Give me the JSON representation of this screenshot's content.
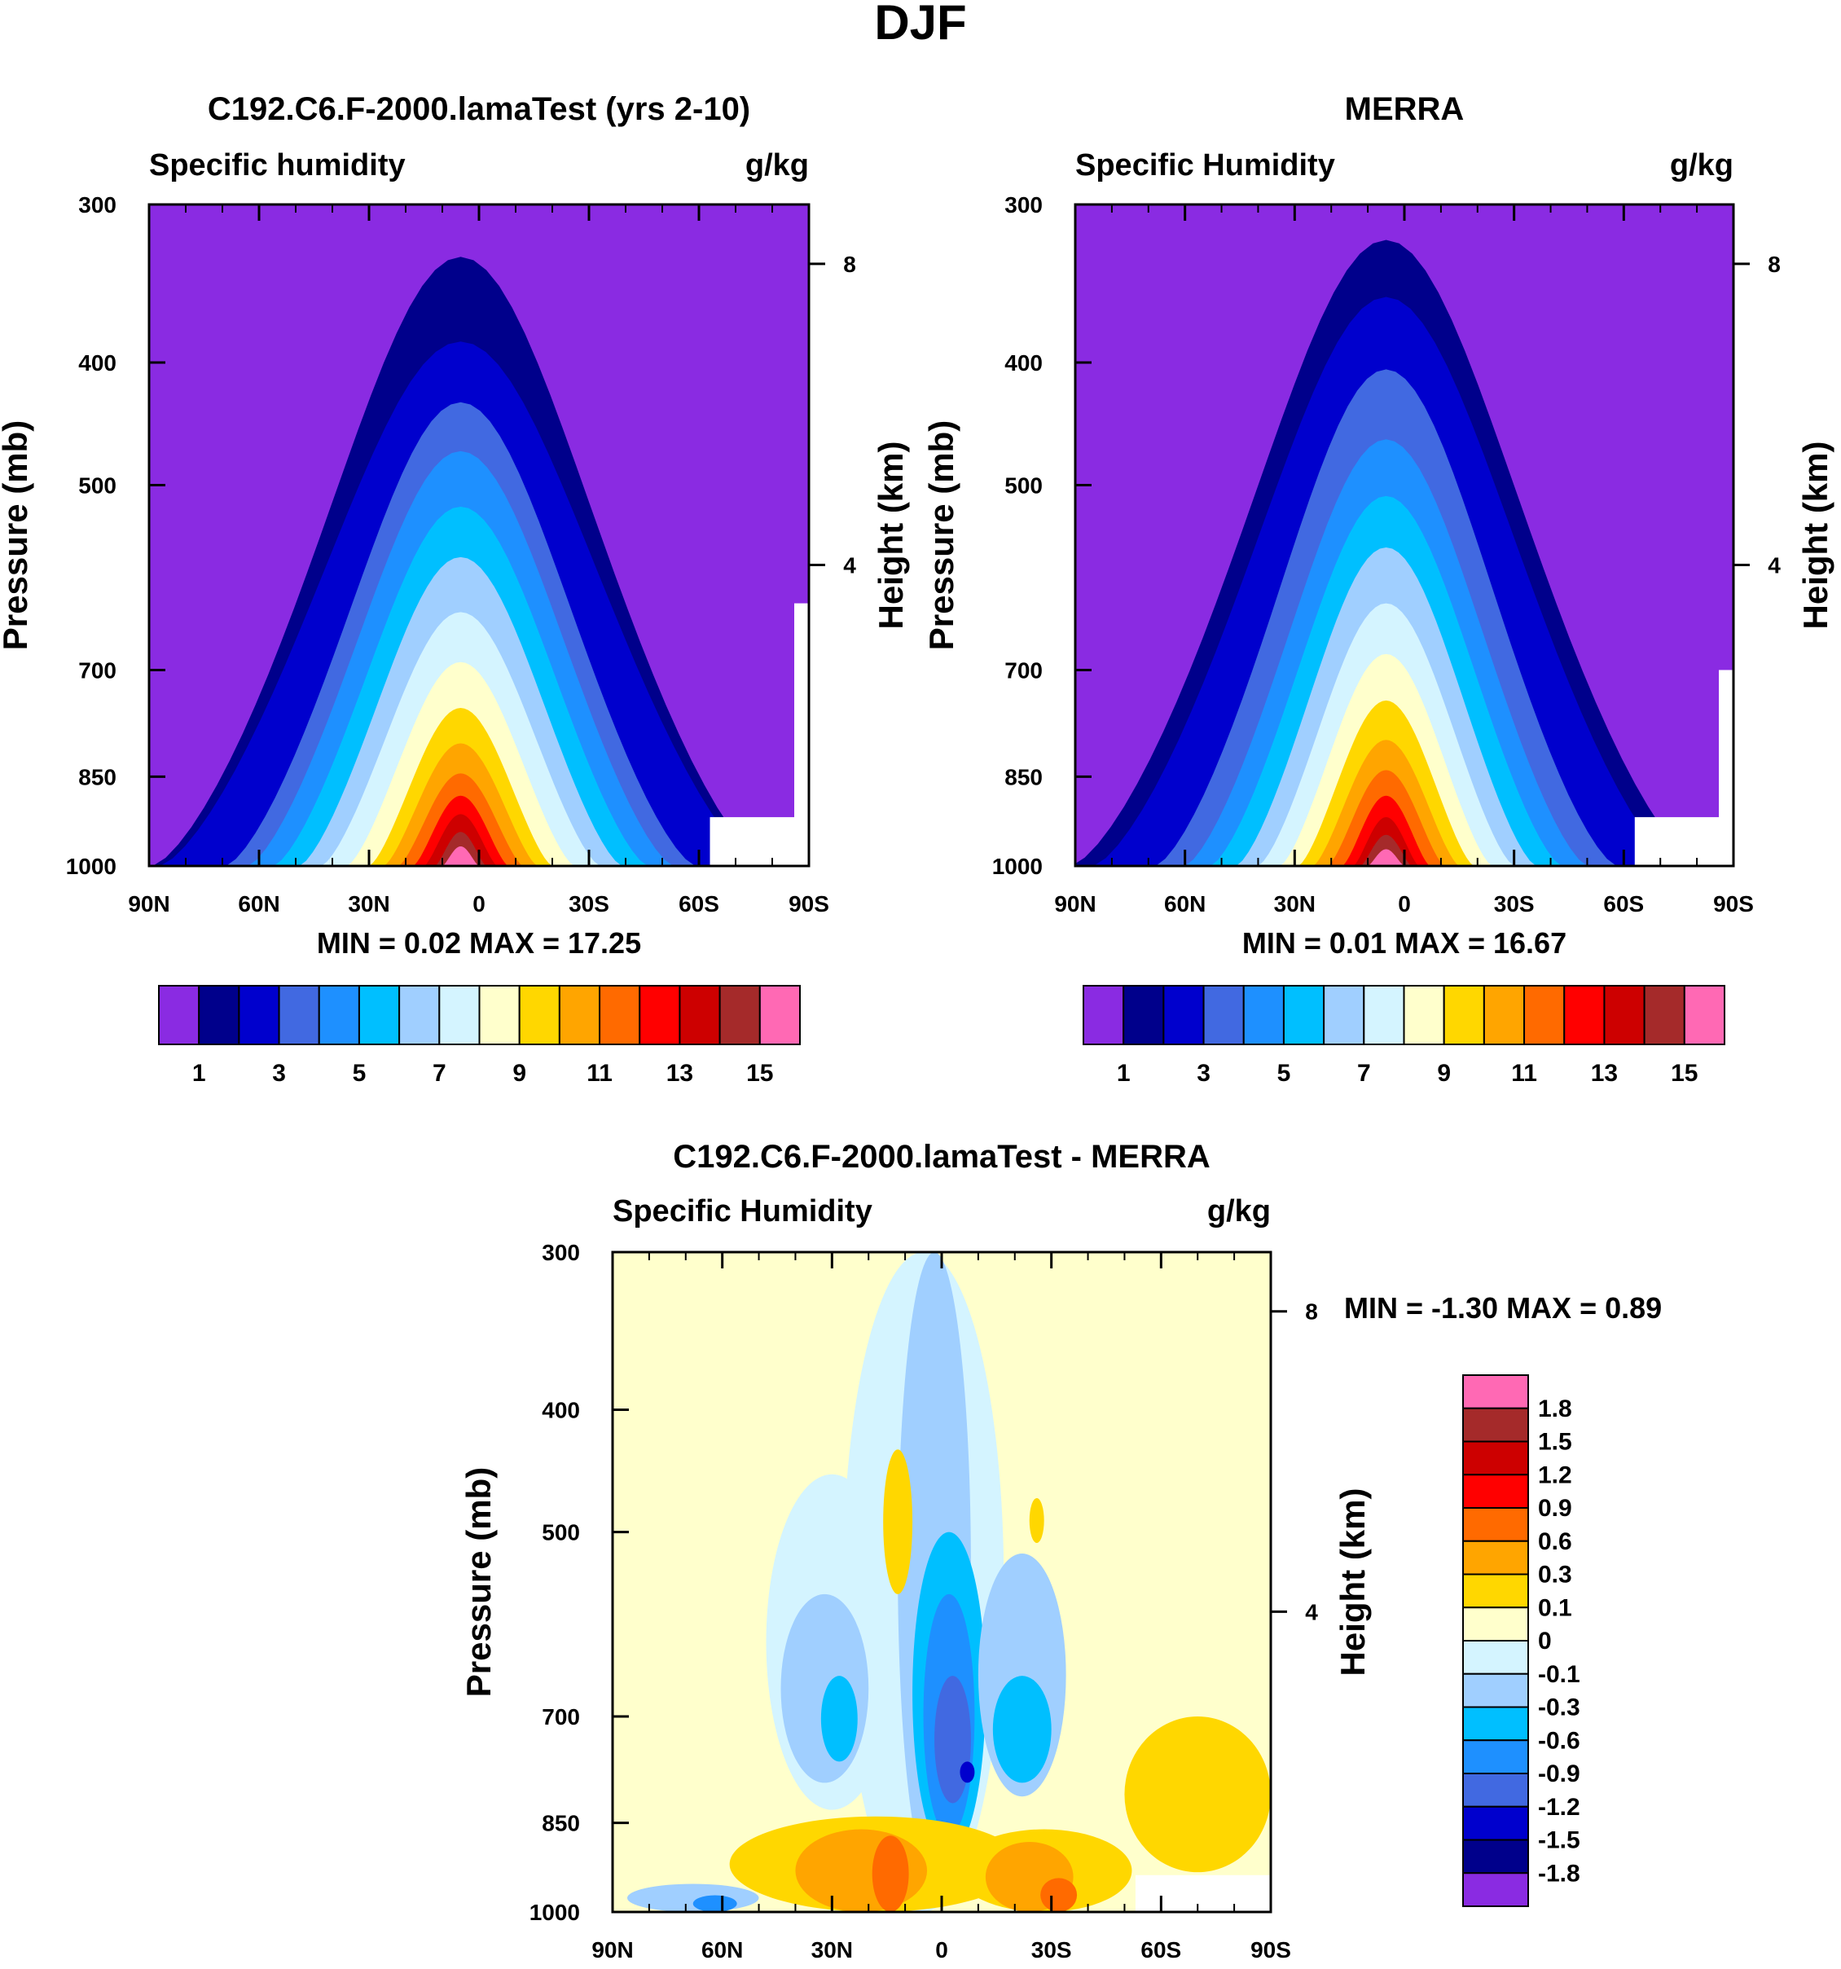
{
  "page_title": "DJF",
  "chart_data": [
    {
      "type": "heatmap",
      "title": "C192.C6.F-2000.lamaTest (yrs 2-10)",
      "left_label": "Specific humidity",
      "units": "g/kg",
      "ylabel": "Pressure (mb)",
      "ylabel_right": "Height (km)",
      "xticks": [
        "90N",
        "60N",
        "30N",
        "0",
        "30S",
        "60S",
        "90S"
      ],
      "xlim": [
        90,
        -90
      ],
      "yticks": [
        "300",
        "400",
        "500",
        "700",
        "850",
        "1000"
      ],
      "ylim": [
        300,
        1000
      ],
      "height_ticks": [
        "8",
        "4"
      ],
      "stats_label": "MIN =   0.02  MAX =  17.25",
      "stats": {
        "min": 0.02,
        "max": 17.25
      },
      "contour_levels": [
        1,
        2,
        3,
        4,
        5,
        6,
        7,
        8,
        9,
        10,
        11,
        12,
        13,
        14,
        15
      ],
      "colorbar_labels": [
        "1",
        "3",
        "5",
        "7",
        "9",
        "11",
        "13",
        "15"
      ],
      "colors": [
        "#8a2be2",
        "#00008b",
        "#0000cd",
        "#4169e1",
        "#1e90ff",
        "#00bfff",
        "#a0cfff",
        "#d4f4ff",
        "#ffffcc",
        "#ffd700",
        "#ffa500",
        "#ff6a00",
        "#ff0000",
        "#cd0000",
        "#a52a2a",
        "#ff69b4"
      ]
    },
    {
      "type": "heatmap",
      "title": "MERRA",
      "left_label": "Specific Humidity",
      "units": "g/kg",
      "ylabel": "Pressure (mb)",
      "ylabel_right": "Height (km)",
      "xticks": [
        "90N",
        "60N",
        "30N",
        "0",
        "30S",
        "60S",
        "90S"
      ],
      "xlim": [
        90,
        -90
      ],
      "yticks": [
        "300",
        "400",
        "500",
        "700",
        "850",
        "1000"
      ],
      "ylim": [
        300,
        1000
      ],
      "height_ticks": [
        "8",
        "4"
      ],
      "stats_label": "MIN =   0.01  MAX =  16.67",
      "stats": {
        "min": 0.01,
        "max": 16.67
      },
      "contour_levels": [
        1,
        2,
        3,
        4,
        5,
        6,
        7,
        8,
        9,
        10,
        11,
        12,
        13,
        14,
        15
      ],
      "colorbar_labels": [
        "1",
        "3",
        "5",
        "7",
        "9",
        "11",
        "13",
        "15"
      ],
      "colors": [
        "#8a2be2",
        "#00008b",
        "#0000cd",
        "#4169e1",
        "#1e90ff",
        "#00bfff",
        "#a0cfff",
        "#d4f4ff",
        "#ffffcc",
        "#ffd700",
        "#ffa500",
        "#ff6a00",
        "#ff0000",
        "#cd0000",
        "#a52a2a",
        "#ff69b4"
      ]
    },
    {
      "type": "heatmap",
      "title": "C192.C6.F-2000.lamaTest - MERRA",
      "left_label": "Specific Humidity",
      "units": "g/kg",
      "ylabel": "Pressure (mb)",
      "ylabel_right": "Height (km)",
      "xticks": [
        "90N",
        "60N",
        "30N",
        "0",
        "30S",
        "60S",
        "90S"
      ],
      "xlim": [
        90,
        -90
      ],
      "yticks": [
        "300",
        "400",
        "500",
        "700",
        "850",
        "1000"
      ],
      "ylim": [
        300,
        1000
      ],
      "height_ticks": [
        "8",
        "4"
      ],
      "stats_label": "MIN =  -1.30  MAX =   0.89",
      "stats": {
        "min": -1.3,
        "max": 0.89
      },
      "contour_levels": [
        -1.8,
        -1.5,
        -1.2,
        -0.9,
        -0.6,
        -0.3,
        -0.1,
        0,
        0.1,
        0.3,
        0.6,
        0.9,
        1.2,
        1.5,
        1.8
      ],
      "colorbar_labels": [
        "1.8",
        "1.5",
        "1.2",
        "0.9",
        "0.6",
        "0.3",
        "0.1",
        "0",
        "-0.1",
        "-0.3",
        "-0.6",
        "-0.9",
        "-1.2",
        "-1.5",
        "-1.8"
      ],
      "colors": [
        "#8a2be2",
        "#00008b",
        "#0000cd",
        "#4169e1",
        "#1e90ff",
        "#00bfff",
        "#a0cfff",
        "#d4f4ff",
        "#ffffcc",
        "#ffd700",
        "#ffa500",
        "#ff6a00",
        "#ff0000",
        "#cd0000",
        "#a52a2a",
        "#ff69b4"
      ]
    }
  ]
}
